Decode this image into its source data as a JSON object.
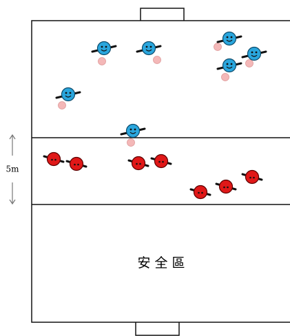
{
  "labels": {
    "distance": "5m",
    "zone": "安 全 區"
  }
}
